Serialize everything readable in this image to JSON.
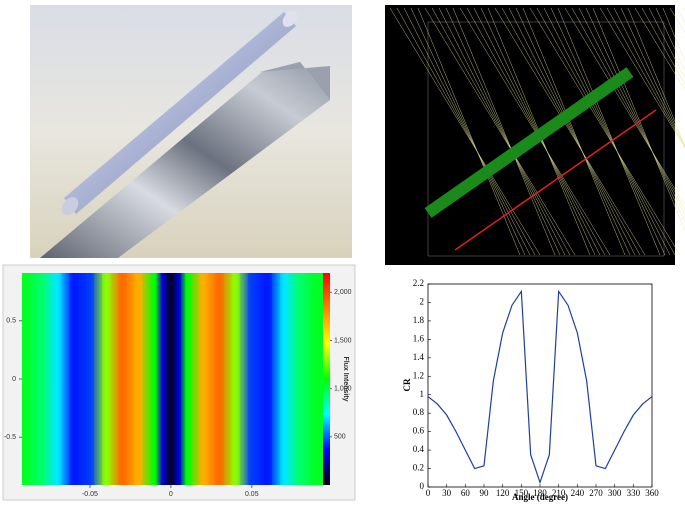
{
  "chart_data": [
    {
      "type": "heatmap",
      "x": [
        -0.09,
        -0.08,
        -0.07,
        -0.06,
        -0.05,
        -0.04,
        -0.03,
        -0.02,
        -0.01,
        -0.005,
        0,
        0.005,
        0.01,
        0.02,
        0.03,
        0.04,
        0.05,
        0.06,
        0.07,
        0.08,
        0.09
      ],
      "values": [
        1050,
        950,
        700,
        400,
        450,
        1300,
        1900,
        1700,
        1100,
        300,
        50,
        300,
        1100,
        1700,
        1900,
        1300,
        450,
        400,
        700,
        950,
        1050
      ],
      "xlim": [
        -0.092,
        0.094
      ],
      "xticks": [
        -0.05,
        0,
        0.05
      ],
      "ylim": [
        -0.91,
        0.91
      ],
      "yticks": [
        0.5,
        0,
        -0.5
      ],
      "colorbar_label": "Flux Intensity",
      "clim": [
        0,
        2200
      ],
      "cticks": [
        500,
        {
          "value": 1000,
          "label": "1,000"
        },
        {
          "value": 1500,
          "label": "1,500"
        },
        {
          "value": 2000,
          "label": "2,000"
        }
      ],
      "colors": [
        "#000000",
        "#0000ff",
        "#00ffff",
        "#00ff00",
        "#ffff00",
        "#ff8000",
        "#ff0000"
      ]
    },
    {
      "type": "line",
      "xlabel": "Angle (degree)",
      "ylabel": "CR",
      "x": [
        0,
        15,
        30,
        45,
        60,
        75,
        90,
        105,
        120,
        135,
        150,
        165,
        180,
        195,
        210,
        225,
        240,
        255,
        270,
        285,
        300,
        315,
        330,
        345,
        360
      ],
      "series": [
        {
          "color": "#1f3fa0",
          "values": [
            0.98,
            0.9,
            0.78,
            0.6,
            0.4,
            0.2,
            0.23,
            1.15,
            1.67,
            1.97,
            2.12,
            0.35,
            0.05,
            0.35,
            2.12,
            1.97,
            1.67,
            1.15,
            0.23,
            0.2,
            0.4,
            0.6,
            0.78,
            0.9,
            0.98
          ]
        }
      ],
      "xlim": [
        0,
        360
      ],
      "xticks": [
        0,
        30,
        60,
        90,
        120,
        150,
        180,
        210,
        240,
        270,
        300,
        330,
        360
      ],
      "ylim": [
        0,
        2.2
      ],
      "yticks": [
        0,
        0.2,
        0.4,
        0.6,
        0.8,
        1,
        1.2,
        1.4,
        1.6,
        1.8,
        2,
        2.2
      ]
    }
  ]
}
